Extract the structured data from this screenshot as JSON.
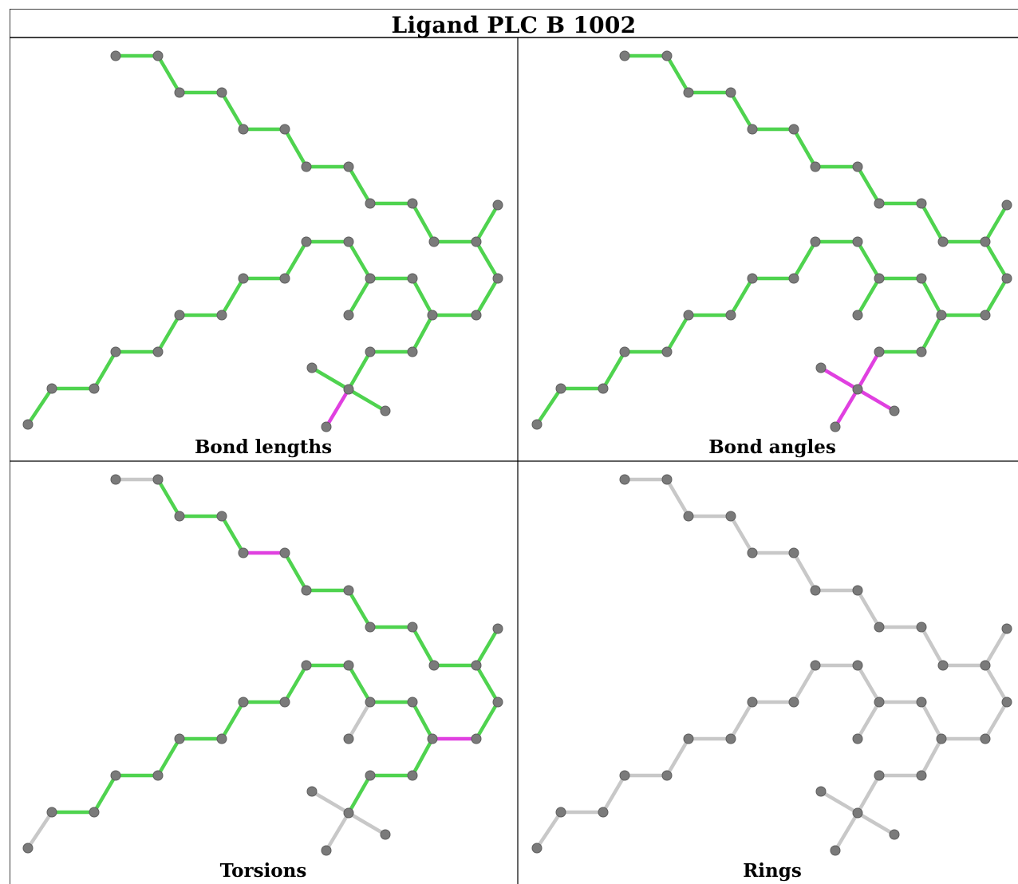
{
  "title": "Ligand PLC B 1002",
  "panels": [
    {
      "caption": "Bond lengths"
    },
    {
      "caption": "Bond angles"
    },
    {
      "caption": "Torsions"
    },
    {
      "caption": "Rings"
    }
  ],
  "colors": {
    "ok": "#4fd34f",
    "outlier": "#e040e0",
    "neutral": "#c8c8c8",
    "atom": "#7a7a7a",
    "border": "#000000"
  }
}
